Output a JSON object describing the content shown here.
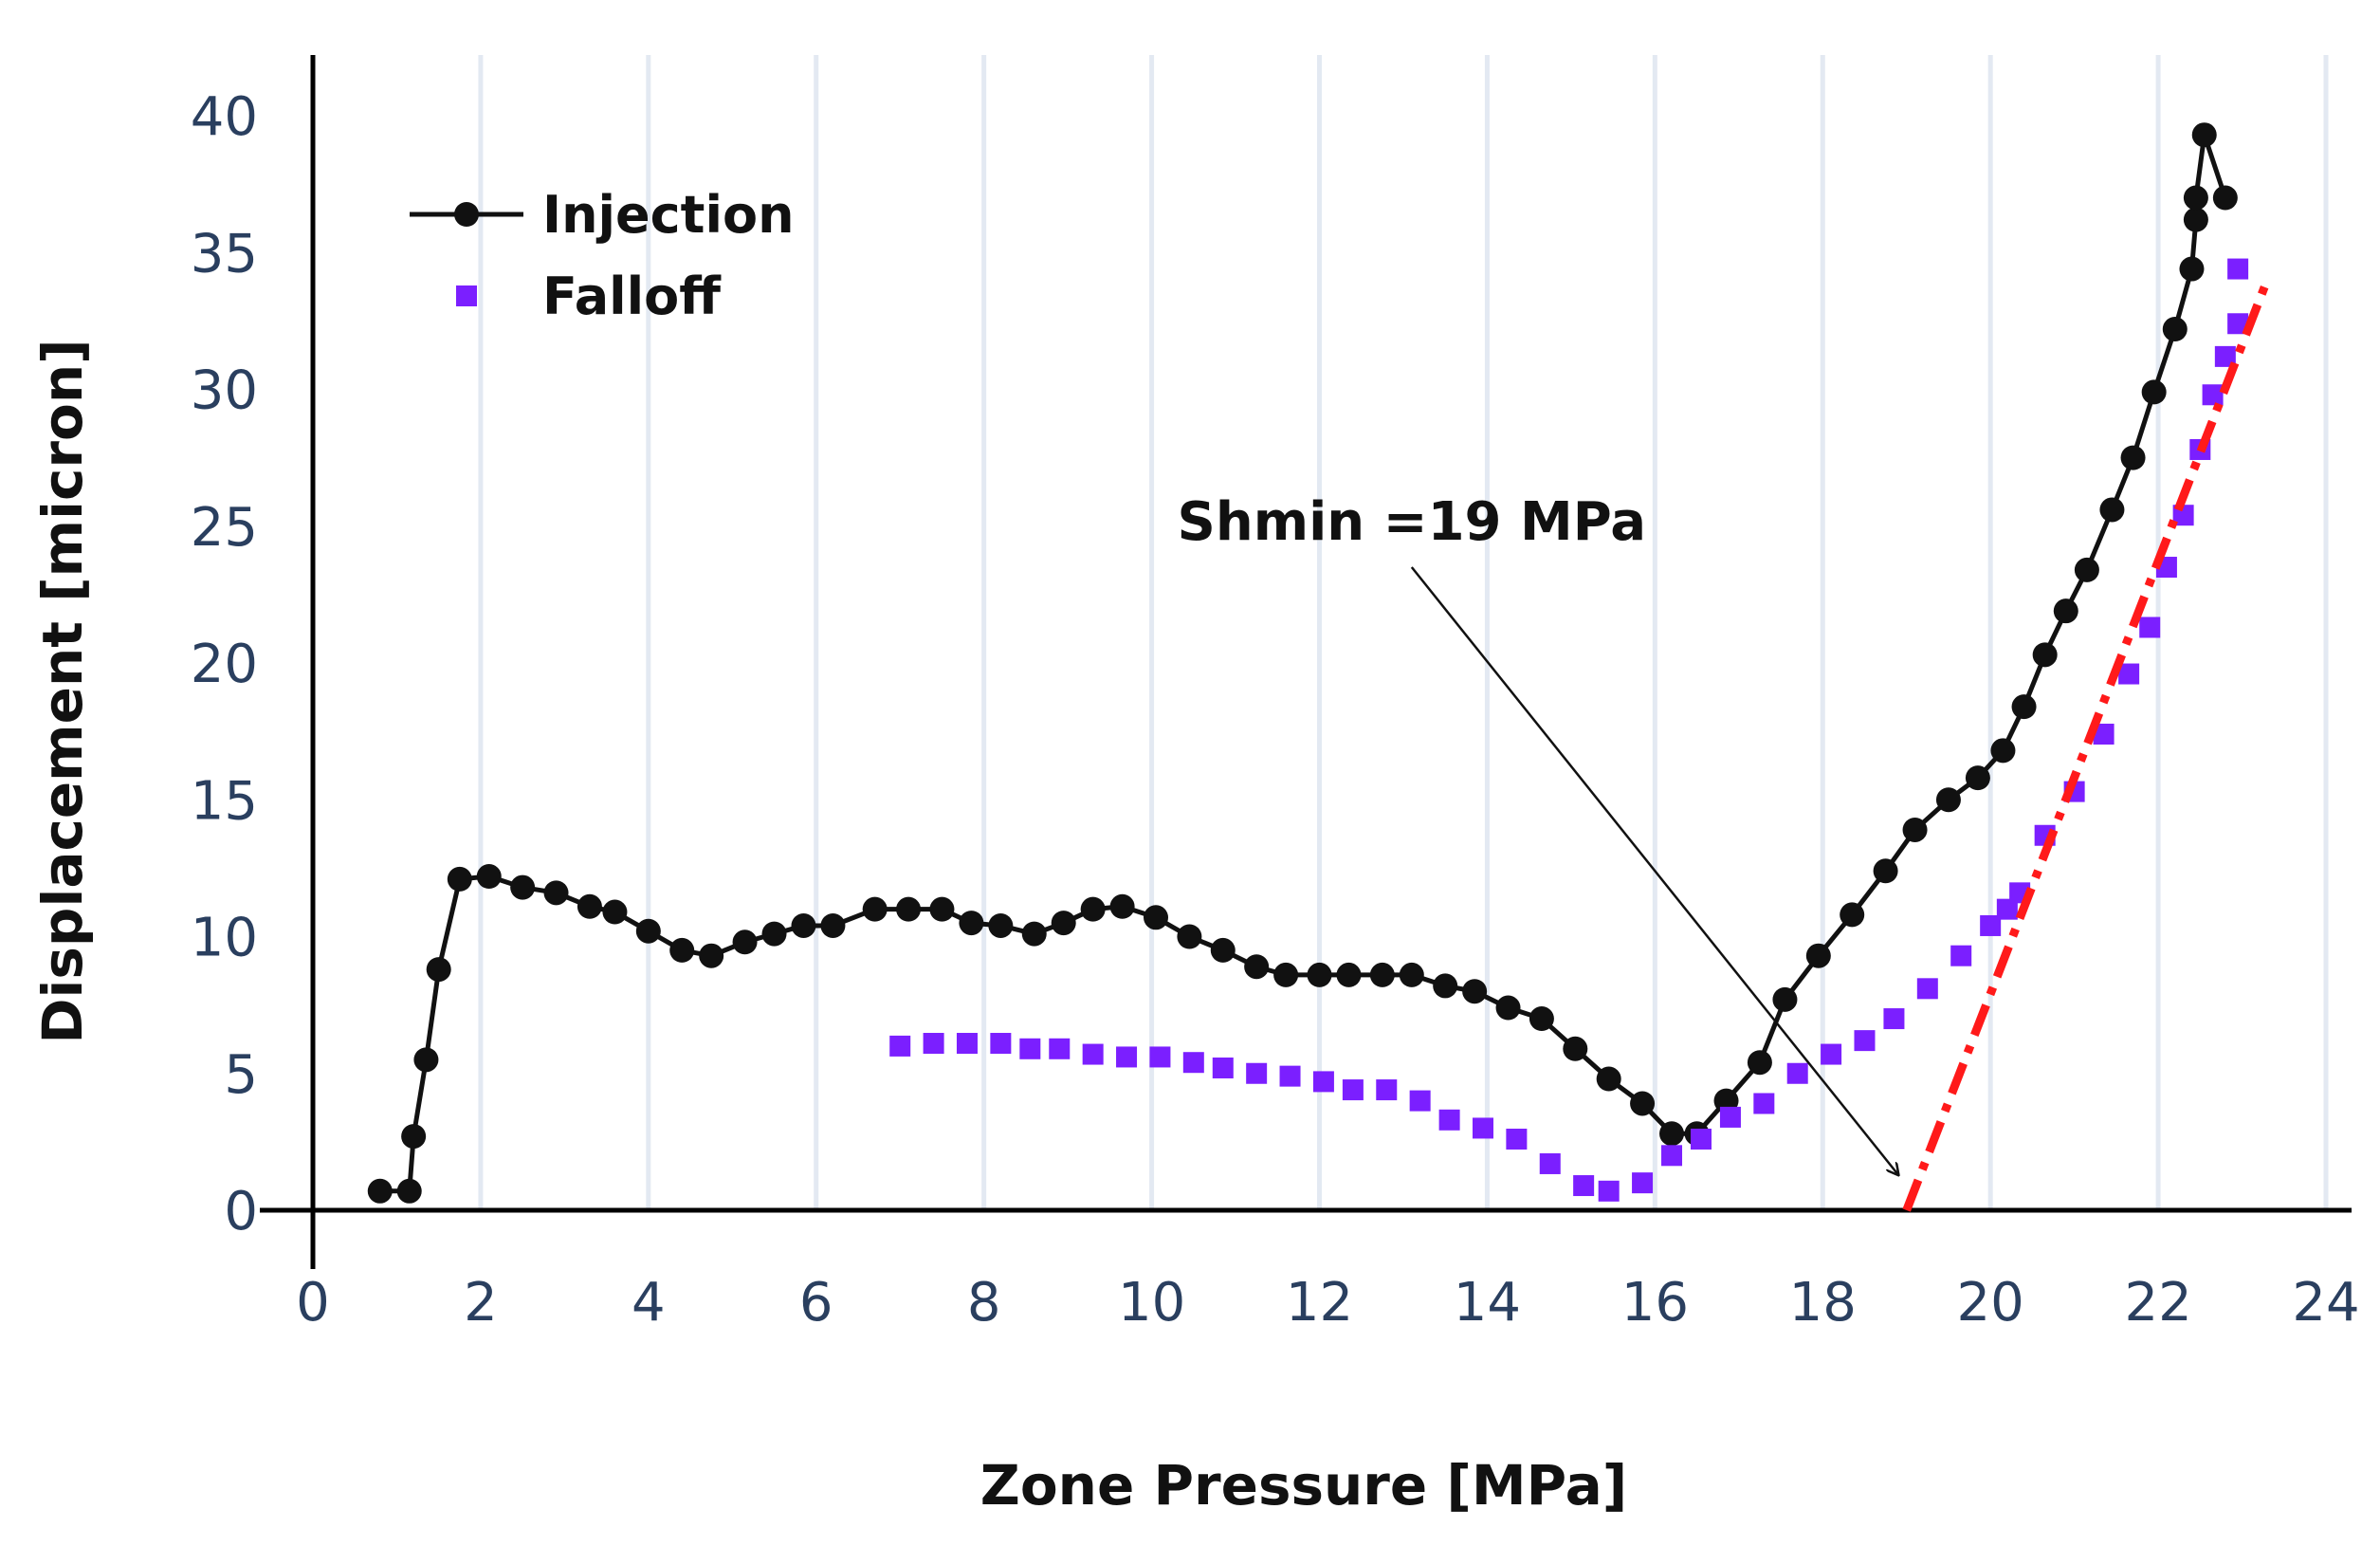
{
  "chart_data": {
    "type": "scatter",
    "xlabel": "Zone Pressure  [MPa]",
    "ylabel": "Displacement [micron]",
    "xlim": [
      0,
      24
    ],
    "ylim": [
      0,
      40
    ],
    "xticks": [
      0,
      2,
      4,
      6,
      8,
      10,
      12,
      14,
      16,
      18,
      20,
      22,
      24
    ],
    "yticks": [
      0,
      5,
      10,
      15,
      20,
      25,
      30,
      35,
      40
    ],
    "grid": "vertical",
    "legend_position": "top-left",
    "series": [
      {
        "name": "Injection",
        "mode": "lines+markers",
        "color": "#111111",
        "points": [
          [
            0.8,
            0.7
          ],
          [
            1.15,
            0.7
          ],
          [
            1.2,
            2.7
          ],
          [
            1.35,
            5.5
          ],
          [
            1.5,
            8.8
          ],
          [
            1.75,
            12.1
          ],
          [
            2.1,
            12.2
          ],
          [
            2.5,
            11.8
          ],
          [
            2.9,
            11.6
          ],
          [
            3.3,
            11.1
          ],
          [
            3.6,
            10.9
          ],
          [
            4.0,
            10.2
          ],
          [
            4.4,
            9.5
          ],
          [
            4.75,
            9.3
          ],
          [
            5.15,
            9.8
          ],
          [
            5.5,
            10.1
          ],
          [
            5.85,
            10.4
          ],
          [
            6.2,
            10.4
          ],
          [
            6.7,
            11.0
          ],
          [
            7.1,
            11.0
          ],
          [
            7.5,
            11.0
          ],
          [
            7.85,
            10.5
          ],
          [
            8.2,
            10.4
          ],
          [
            8.6,
            10.1
          ],
          [
            8.95,
            10.5
          ],
          [
            9.3,
            11.0
          ],
          [
            9.65,
            11.1
          ],
          [
            10.05,
            10.7
          ],
          [
            10.45,
            10.0
          ],
          [
            10.85,
            9.5
          ],
          [
            11.25,
            8.9
          ],
          [
            11.6,
            8.6
          ],
          [
            12.0,
            8.6
          ],
          [
            12.35,
            8.6
          ],
          [
            12.75,
            8.6
          ],
          [
            13.1,
            8.6
          ],
          [
            13.5,
            8.2
          ],
          [
            13.85,
            8.0
          ],
          [
            14.25,
            7.4
          ],
          [
            14.65,
            7.0
          ],
          [
            15.05,
            5.9
          ],
          [
            15.45,
            4.8
          ],
          [
            15.85,
            3.9
          ],
          [
            16.2,
            2.8
          ],
          [
            16.5,
            2.8
          ],
          [
            16.85,
            4.0
          ],
          [
            17.25,
            5.4
          ],
          [
            17.55,
            7.7
          ],
          [
            17.95,
            9.3
          ],
          [
            18.35,
            10.8
          ],
          [
            18.75,
            12.4
          ],
          [
            19.1,
            13.9
          ],
          [
            19.5,
            15.0
          ],
          [
            19.85,
            15.8
          ],
          [
            20.15,
            16.8
          ],
          [
            20.4,
            18.4
          ],
          [
            20.65,
            20.3
          ],
          [
            20.9,
            21.9
          ],
          [
            21.15,
            23.4
          ],
          [
            21.45,
            25.6
          ],
          [
            21.7,
            27.5
          ],
          [
            21.95,
            29.9
          ],
          [
            22.2,
            32.2
          ],
          [
            22.4,
            34.4
          ],
          [
            22.45,
            36.2
          ],
          [
            22.45,
            37.0
          ],
          [
            22.55,
            39.3
          ],
          [
            22.8,
            37.0
          ]
        ]
      },
      {
        "name": "Falloff",
        "mode": "markers",
        "color": "#7b1fff",
        "points": [
          [
            7.0,
            6.0
          ],
          [
            7.4,
            6.1
          ],
          [
            7.8,
            6.1
          ],
          [
            8.2,
            6.1
          ],
          [
            8.55,
            5.9
          ],
          [
            8.9,
            5.9
          ],
          [
            9.3,
            5.7
          ],
          [
            9.7,
            5.6
          ],
          [
            10.1,
            5.6
          ],
          [
            10.5,
            5.4
          ],
          [
            10.85,
            5.2
          ],
          [
            11.25,
            5.0
          ],
          [
            11.65,
            4.9
          ],
          [
            12.05,
            4.7
          ],
          [
            12.4,
            4.4
          ],
          [
            12.8,
            4.4
          ],
          [
            13.2,
            4.0
          ],
          [
            13.55,
            3.3
          ],
          [
            13.95,
            3.0
          ],
          [
            14.35,
            2.6
          ],
          [
            14.75,
            1.7
          ],
          [
            15.15,
            0.9
          ],
          [
            15.45,
            0.7
          ],
          [
            15.85,
            1.0
          ],
          [
            16.2,
            2.0
          ],
          [
            16.55,
            2.6
          ],
          [
            16.9,
            3.4
          ],
          [
            17.3,
            3.9
          ],
          [
            17.7,
            5.0
          ],
          [
            18.1,
            5.7
          ],
          [
            18.5,
            6.2
          ],
          [
            18.85,
            7.0
          ],
          [
            19.25,
            8.1
          ],
          [
            19.65,
            9.3
          ],
          [
            20.0,
            10.4
          ],
          [
            20.2,
            11.0
          ],
          [
            20.35,
            11.6
          ],
          [
            20.65,
            13.7
          ],
          [
            21.0,
            15.3
          ],
          [
            21.35,
            17.4
          ],
          [
            21.65,
            19.6
          ],
          [
            21.9,
            21.3
          ],
          [
            22.1,
            23.5
          ],
          [
            22.3,
            25.4
          ],
          [
            22.5,
            27.8
          ],
          [
            22.65,
            29.8
          ],
          [
            22.8,
            31.2
          ],
          [
            22.95,
            32.4
          ],
          [
            22.95,
            34.4
          ]
        ]
      },
      {
        "mode": "dashdot-line",
        "color": "#ff1a1a",
        "points": [
          [
            19.0,
            0.0
          ],
          [
            23.3,
            34.0
          ]
        ]
      }
    ],
    "annotations": [
      {
        "text": "Shmin =19 MPa",
        "text_at": [
          13.1,
          24.5
        ],
        "arrow_tail": [
          13.1,
          23.5
        ],
        "arrow_head": [
          18.9,
          1.3
        ]
      }
    ]
  }
}
